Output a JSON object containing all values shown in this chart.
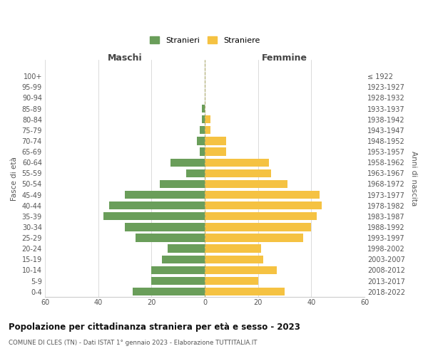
{
  "age_groups": [
    "0-4",
    "5-9",
    "10-14",
    "15-19",
    "20-24",
    "25-29",
    "30-34",
    "35-39",
    "40-44",
    "45-49",
    "50-54",
    "55-59",
    "60-64",
    "65-69",
    "70-74",
    "75-79",
    "80-84",
    "85-89",
    "90-94",
    "95-99",
    "100+"
  ],
  "birth_years": [
    "2018-2022",
    "2013-2017",
    "2008-2012",
    "2003-2007",
    "1998-2002",
    "1993-1997",
    "1988-1992",
    "1983-1987",
    "1978-1982",
    "1973-1977",
    "1968-1972",
    "1963-1967",
    "1958-1962",
    "1953-1957",
    "1948-1952",
    "1943-1947",
    "1938-1942",
    "1933-1937",
    "1928-1932",
    "1923-1927",
    "≤ 1922"
  ],
  "maschi": [
    27,
    20,
    20,
    16,
    14,
    26,
    30,
    38,
    36,
    30,
    17,
    7,
    13,
    2,
    3,
    2,
    1,
    1,
    0,
    0,
    0
  ],
  "femmine": [
    30,
    20,
    27,
    22,
    21,
    37,
    40,
    42,
    44,
    43,
    31,
    25,
    24,
    8,
    8,
    2,
    2,
    0,
    0,
    0,
    0
  ],
  "maschi_color": "#6a9e5a",
  "femmine_color": "#f5c242",
  "title": "Popolazione per cittadinanza straniera per età e sesso - 2023",
  "subtitle": "COMUNE DI CLES (TN) - Dati ISTAT 1° gennaio 2023 - Elaborazione TUTTITALIA.IT",
  "xlabel_left": "Maschi",
  "xlabel_right": "Femmine",
  "ylabel_left": "Fasce di età",
  "ylabel_right": "Anni di nascita",
  "legend_maschi": "Stranieri",
  "legend_femmine": "Straniere",
  "xlim": 60,
  "bg_color": "#ffffff",
  "grid_color": "#cccccc",
  "bar_height": 0.75
}
